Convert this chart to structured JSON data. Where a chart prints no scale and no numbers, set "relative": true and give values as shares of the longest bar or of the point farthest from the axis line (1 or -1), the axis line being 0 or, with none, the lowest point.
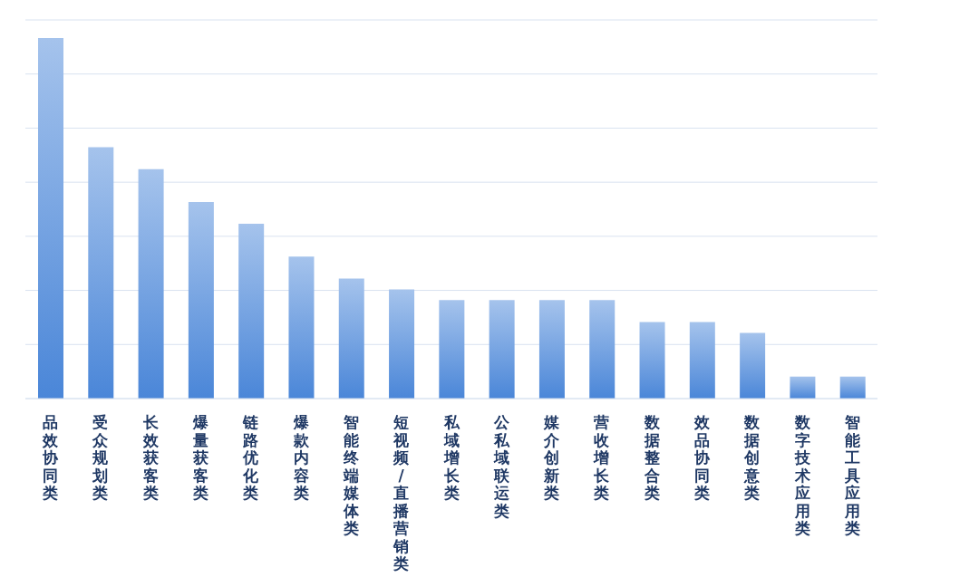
{
  "chart_data": {
    "type": "bar",
    "relative": true,
    "grid": "y",
    "color": "#4a86d8",
    "categories": [
      "品效协同类",
      "受众规划类",
      "长效获客类",
      "爆量获客类",
      "链路优化类",
      "爆款内容类",
      "智能终端媒体类",
      "短视频/直播营销类",
      "私域增长类",
      "公私域联运类",
      "媒介创新类",
      "营收增长类",
      "数据整合类",
      "效品协同类",
      "数据创意类",
      "数字技术应用类",
      "智能工具应用类"
    ],
    "values": [
      1,
      0.697,
      0.636,
      0.545,
      0.485,
      0.394,
      0.333,
      0.303,
      0.273,
      0.273,
      0.273,
      0.273,
      0.212,
      0.212,
      0.182,
      0.061,
      0.061
    ]
  }
}
